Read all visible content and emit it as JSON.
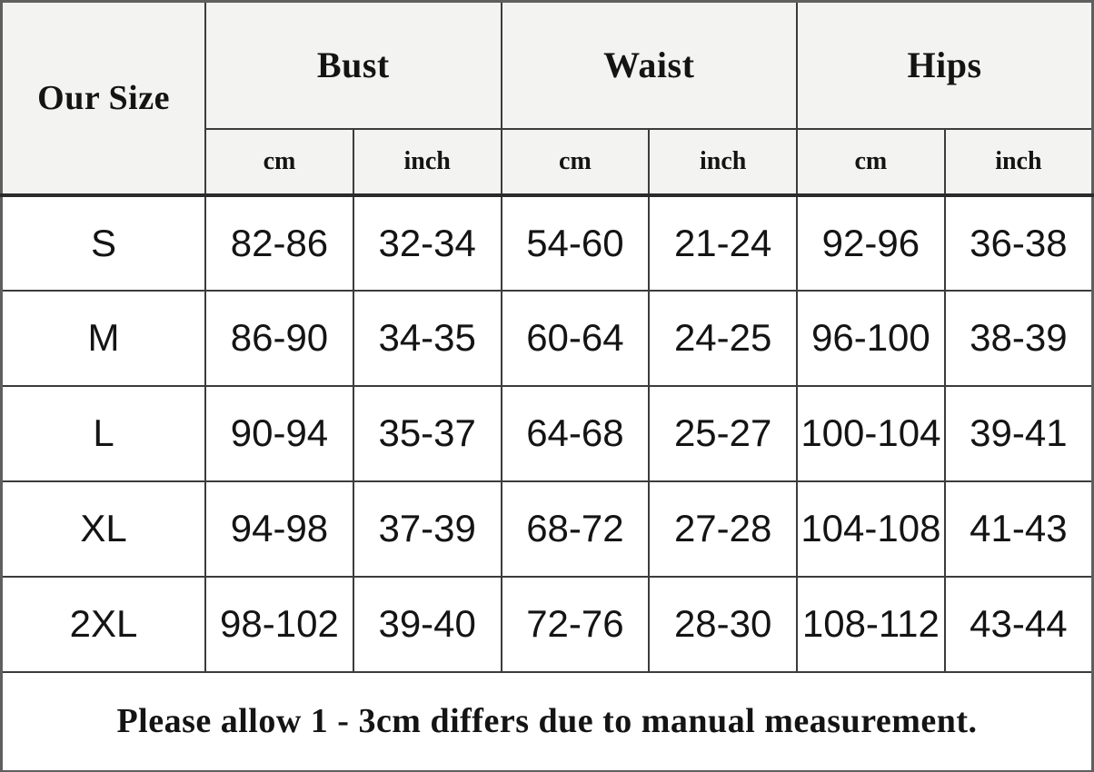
{
  "size_chart": {
    "corner_header": "Our Size",
    "groups": [
      {
        "label": "Bust"
      },
      {
        "label": "Waist"
      },
      {
        "label": "Hips"
      }
    ],
    "unit_headers": [
      "cm",
      "inch",
      "cm",
      "inch",
      "cm",
      "inch"
    ],
    "rows": [
      {
        "size": "S",
        "values": [
          "82-86",
          "32-34",
          "54-60",
          "21-24",
          "92-96",
          "36-38"
        ]
      },
      {
        "size": "M",
        "values": [
          "86-90",
          "34-35",
          "60-64",
          "24-25",
          "96-100",
          "38-39"
        ]
      },
      {
        "size": "L",
        "values": [
          "90-94",
          "35-37",
          "64-68",
          "25-27",
          "100-104",
          "39-41"
        ]
      },
      {
        "size": "XL",
        "values": [
          "94-98",
          "37-39",
          "68-72",
          "27-28",
          "104-108",
          "41-43"
        ]
      },
      {
        "size": "2XL",
        "values": [
          "98-102",
          "39-40",
          "72-76",
          "28-30",
          "108-112",
          "43-44"
        ]
      }
    ],
    "footer_note": "Please allow 1 - 3cm differs due to manual measurement."
  },
  "colors": {
    "header_bg": "#f3f3f1",
    "cell_bg": "#ffffff",
    "border": "#3c3c3c",
    "outer_border": "#5f5f5f",
    "heavy_border": "#2b2b2b",
    "text": "#141414"
  }
}
